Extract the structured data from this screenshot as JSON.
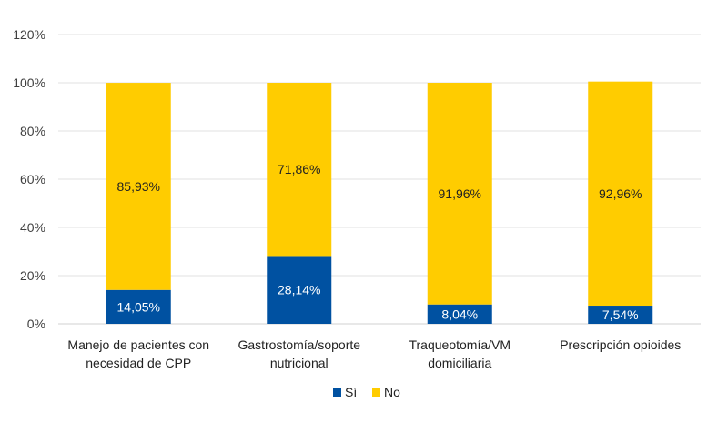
{
  "chart_data": {
    "type": "bar",
    "stacked": true,
    "categories": [
      [
        "Manejo de pacientes con",
        "necesidad de CPP"
      ],
      [
        "Gastrostomía/soporte",
        "nutricional"
      ],
      [
        "Traqueotomía/VM",
        "domiciliaria"
      ],
      [
        "Prescripción opioides"
      ]
    ],
    "series": [
      {
        "name": "Sí",
        "color": "#0051A1",
        "values": [
          14.05,
          28.14,
          8.04,
          7.54
        ],
        "labels": [
          "14,05%",
          "28,14%",
          "8,04%",
          "7,54%"
        ]
      },
      {
        "name": "No",
        "color": "#FFCC00",
        "values": [
          85.93,
          71.86,
          91.96,
          92.96
        ],
        "labels": [
          "85,93%",
          "71,86%",
          "91,96%",
          "92,96%"
        ]
      }
    ],
    "ylim": [
      0,
      120
    ],
    "yticks": [
      "0%",
      "20%",
      "40%",
      "60%",
      "80%",
      "100%",
      "120%"
    ],
    "grid": true,
    "legend": "bottom"
  }
}
